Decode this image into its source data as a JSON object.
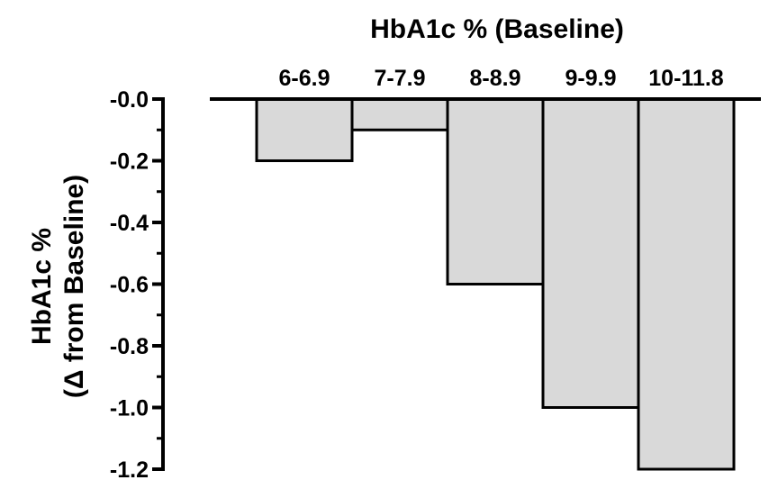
{
  "chart_data": {
    "type": "bar",
    "title": "HbA1c % (Baseline)",
    "ylabel_line1": "HbA1c %",
    "ylabel_line2": "(Δ from Baseline)",
    "xlabel": "",
    "categories": [
      "6-6.9",
      "7-7.9",
      "8-8.9",
      "9-9.9",
      "10-11.8"
    ],
    "values": [
      -0.2,
      -0.1,
      -0.6,
      -1.0,
      -1.2
    ],
    "ylim": [
      -1.2,
      0.0
    ],
    "yticks": [
      -0.0,
      -0.2,
      -0.4,
      -0.6,
      -0.8,
      -1.0,
      -1.2
    ],
    "ytick_labels": [
      "-0.0",
      "-0.2",
      "-0.4",
      "-0.6",
      "-0.8",
      "-1.0",
      "-1.2"
    ],
    "category_axis_position": "top",
    "grid": false,
    "legend": "none",
    "bar_color": "#d9d9d9",
    "edge_color": "#000000"
  }
}
